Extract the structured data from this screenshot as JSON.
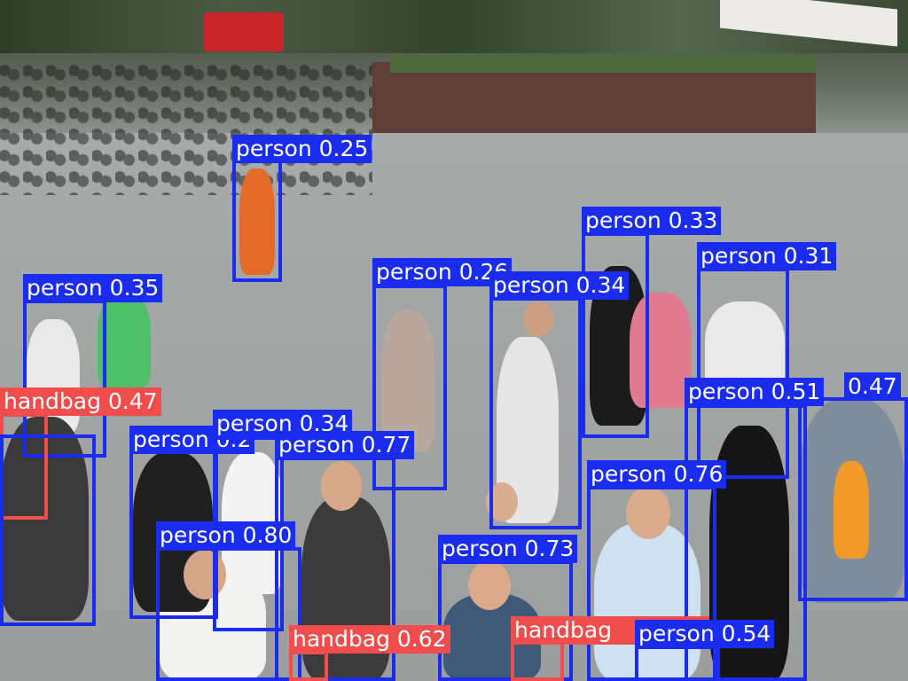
{
  "colors": {
    "person_box": "#1a2cf0",
    "handbag_box": "#f14d4d",
    "label_text": "#ffffff"
  },
  "detections": [
    {
      "cls": "person",
      "label": "person 0.25"
    },
    {
      "cls": "person",
      "label": "person 0.33"
    },
    {
      "cls": "person",
      "label": "person 0.31"
    },
    {
      "cls": "person",
      "label": "person 0.35"
    },
    {
      "cls": "person",
      "label": "person 0.26"
    },
    {
      "cls": "person",
      "label": "person 0.34"
    },
    {
      "cls": "handbag",
      "label": "handbag 0.47"
    },
    {
      "cls": "person",
      "label": "person 0.2"
    },
    {
      "cls": "person",
      "label": "person 0.34"
    },
    {
      "cls": "person",
      "label": "person 0.77"
    },
    {
      "cls": "person",
      "label": "person 0.51"
    },
    {
      "cls": "person",
      "label": "0.47"
    },
    {
      "cls": "person",
      "label": "person 0.76"
    },
    {
      "cls": "person",
      "label": "person 0.80"
    },
    {
      "cls": "person",
      "label": "person 0.73"
    },
    {
      "cls": "handbag",
      "label": "handbag 0.62"
    },
    {
      "cls": "handbag",
      "label": "handbag"
    },
    {
      "cls": "person",
      "label": "person 0.54"
    }
  ]
}
